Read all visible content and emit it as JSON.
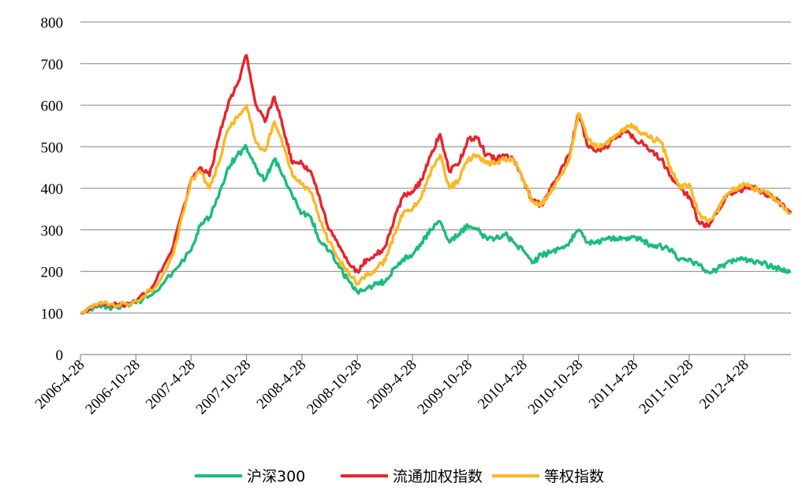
{
  "chart_data": {
    "type": "line",
    "title": "",
    "xlabel": "",
    "ylabel": "",
    "ylim": [
      0,
      800
    ],
    "yticks": [
      0,
      100,
      200,
      300,
      400,
      500,
      600,
      700,
      800
    ],
    "x_tick_labels": [
      "2006-4-28",
      "2006-10-28",
      "2007-4-28",
      "2007-10-28",
      "2008-4-28",
      "2008-10-28",
      "2009-4-28",
      "2009-10-28",
      "2010-4-28",
      "2010-10-28",
      "2011-4-28",
      "2011-10-28",
      "2012-4-28"
    ],
    "x_end": "2012-9-28",
    "grid": "horizontal",
    "legend_position": "bottom",
    "x": [
      "2006-4-28",
      "2006-6-28",
      "2006-8-28",
      "2006-10-28",
      "2006-12-28",
      "2007-2-28",
      "2007-4-28",
      "2007-5-28",
      "2007-6-28",
      "2007-7-28",
      "2007-8-28",
      "2007-9-28",
      "2007-10-28",
      "2007-11-28",
      "2007-12-28",
      "2008-1-28",
      "2008-2-28",
      "2008-3-28",
      "2008-4-28",
      "2008-5-28",
      "2008-6-28",
      "2008-7-28",
      "2008-8-28",
      "2008-9-28",
      "2008-10-28",
      "2008-11-28",
      "2008-12-28",
      "2009-1-28",
      "2009-2-28",
      "2009-3-28",
      "2009-4-28",
      "2009-5-28",
      "2009-6-28",
      "2009-7-28",
      "2009-8-28",
      "2009-9-28",
      "2009-10-28",
      "2009-11-28",
      "2009-12-28",
      "2010-1-28",
      "2010-2-28",
      "2010-3-28",
      "2010-4-28",
      "2010-5-28",
      "2010-6-28",
      "2010-7-28",
      "2010-8-28",
      "2010-9-28",
      "2010-10-28",
      "2010-11-28",
      "2010-12-28",
      "2011-1-28",
      "2011-2-28",
      "2011-3-28",
      "2011-4-28",
      "2011-5-28",
      "2011-6-28",
      "2011-7-28",
      "2011-8-28",
      "2011-9-28",
      "2011-10-28",
      "2011-11-28",
      "2011-12-28",
      "2012-1-28",
      "2012-2-28",
      "2012-3-28",
      "2012-4-28",
      "2012-5-28",
      "2012-6-28",
      "2012-7-28",
      "2012-8-28",
      "2012-9-28"
    ],
    "series": [
      {
        "name": "沪深300",
        "color": "#1abc7c",
        "values": [
          100,
          118,
          112,
          124,
          150,
          200,
          250,
          310,
          330,
          380,
          450,
          480,
          500,
          450,
          420,
          470,
          430,
          380,
          340,
          330,
          270,
          250,
          210,
          180,
          150,
          160,
          170,
          175,
          210,
          230,
          240,
          270,
          300,
          320,
          270,
          290,
          310,
          300,
          280,
          280,
          290,
          270,
          250,
          220,
          240,
          245,
          255,
          270,
          300,
          270,
          270,
          280,
          280,
          280,
          285,
          275,
          260,
          260,
          250,
          230,
          230,
          215,
          200,
          205,
          220,
          225,
          230,
          220,
          220,
          210,
          205,
          200
        ]
      },
      {
        "name": "流通加权指数",
        "color": "#e8242b",
        "values": [
          100,
          122,
          118,
          128,
          170,
          260,
          420,
          450,
          430,
          520,
          600,
          650,
          720,
          600,
          560,
          620,
          540,
          460,
          460,
          440,
          370,
          300,
          260,
          220,
          200,
          230,
          240,
          260,
          330,
          380,
          390,
          420,
          480,
          530,
          440,
          460,
          520,
          520,
          480,
          470,
          480,
          470,
          420,
          370,
          360,
          400,
          440,
          480,
          580,
          500,
          490,
          500,
          520,
          540,
          520,
          510,
          490,
          470,
          430,
          400,
          380,
          320,
          310,
          340,
          380,
          390,
          400,
          400,
          390,
          380,
          360,
          340
        ]
      },
      {
        "name": "等权指数",
        "color": "#fbb724",
        "values": [
          100,
          125,
          118,
          130,
          160,
          240,
          420,
          440,
          400,
          460,
          540,
          570,
          600,
          510,
          490,
          560,
          500,
          430,
          410,
          390,
          320,
          270,
          230,
          200,
          170,
          190,
          205,
          225,
          290,
          340,
          350,
          380,
          440,
          480,
          400,
          420,
          470,
          480,
          460,
          460,
          470,
          470,
          420,
          370,
          360,
          390,
          430,
          470,
          580,
          520,
          500,
          510,
          525,
          545,
          550,
          530,
          520,
          510,
          450,
          400,
          410,
          340,
          320,
          345,
          385,
          400,
          410,
          400,
          395,
          380,
          360,
          340
        ]
      }
    ]
  }
}
